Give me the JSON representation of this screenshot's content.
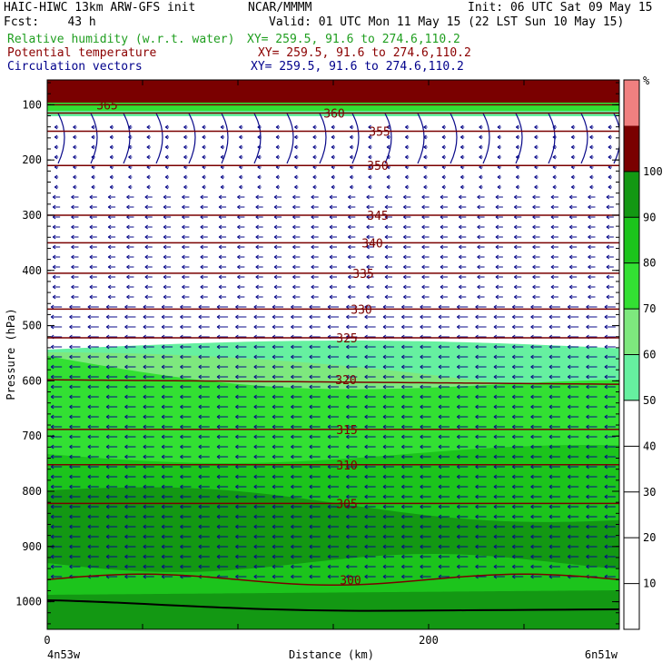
{
  "header": {
    "title": "HAIC-HIWC 13km ARW-GFS init",
    "org": "NCAR/MMMM",
    "init": "Init: 06 UTC Sat 09 May 15",
    "fcst": "Fcst:    43 h",
    "valid": "Valid: 01 UTC Mon 11 May 15 (22 LST Sun 10 May 15)",
    "fields": [
      {
        "name": "Relative humidity (w.r.t. water)",
        "xy": "XY= 259.5, 91.6 to 274.6,110.2",
        "color": "#1f9e1f"
      },
      {
        "name": "Potential temperature",
        "xy": "XY= 259.5, 91.6 to 274.6,110.2",
        "color": "#8b0000"
      },
      {
        "name": "Circulation vectors",
        "xy": "XY= 259.5, 91.6 to 274.6,110.2",
        "color": "#00008b"
      }
    ]
  },
  "chart_data": {
    "type": "heatmap",
    "xlabel": "Distance (km)",
    "ylabel": "Pressure (hPa)",
    "x_ticks": [
      "0",
      "200"
    ],
    "x_endpoints": [
      "4n53w",
      "6n51w"
    ],
    "y_ticks": [
      100,
      200,
      300,
      400,
      500,
      600,
      700,
      800,
      900,
      1000
    ],
    "ylim": [
      1050,
      55
    ],
    "xlim": [
      0,
      300
    ],
    "colorbar": {
      "unit": "%",
      "ticks": [
        10,
        20,
        30,
        40,
        50,
        60,
        70,
        80,
        90,
        100
      ],
      "levels": [
        {
          "min": 0,
          "max": 50,
          "color": "#ffffff"
        },
        {
          "min": 50,
          "max": 60,
          "color": "#66f0a0"
        },
        {
          "min": 60,
          "max": 70,
          "color": "#7ee87e"
        },
        {
          "min": 70,
          "max": 80,
          "color": "#33e033"
        },
        {
          "min": 80,
          "max": 90,
          "color": "#1cc41c"
        },
        {
          "min": 90,
          "max": 100,
          "color": "#139813"
        },
        {
          "min": 100,
          "max": 110,
          "color": "#7a0000"
        },
        {
          "min": 110,
          "max": 120,
          "color": "#f08080"
        }
      ]
    },
    "isentropes": [
      {
        "label": "365",
        "p": 100
      },
      {
        "label": "360",
        "p": 115
      },
      {
        "label": "355",
        "p": 148
      },
      {
        "label": "350",
        "p": 210
      },
      {
        "label": "345",
        "p": 300
      },
      {
        "label": "340",
        "p": 350
      },
      {
        "label": "335",
        "p": 405
      },
      {
        "label": "330",
        "p": 470
      },
      {
        "label": "325",
        "p": 522
      },
      {
        "label": "320",
        "p": 598
      },
      {
        "label": "315",
        "p": 688
      },
      {
        "label": "310",
        "p": 752
      },
      {
        "label": "305",
        "p": 822
      },
      {
        "label": "300",
        "p": 960
      }
    ],
    "rh_regions": [
      {
        "level": "90-100",
        "p_top": 760,
        "p_bottom": 940
      },
      {
        "level": "80-90",
        "p_top": 740,
        "p_bottom": 1000
      },
      {
        "level": "70-80",
        "p_top": 555,
        "p_bottom": 760
      },
      {
        "level": "60-70",
        "p_top": 570,
        "p_bottom": 690
      },
      {
        "level": "50-60",
        "p_top": 540,
        "p_bottom": 660
      },
      {
        "level": "100+",
        "p_top": 55,
        "p_bottom": 92
      }
    ]
  }
}
